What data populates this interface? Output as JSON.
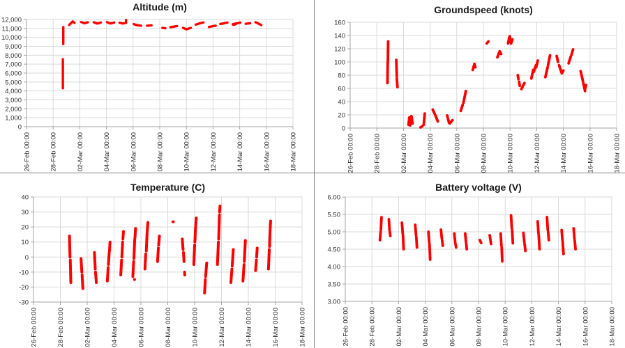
{
  "colors": {
    "series": "#ff0000",
    "gridline": "#d9d9d9",
    "axis": "#a3a3a3",
    "tick_label": "#303030",
    "title": "#1a1a1a",
    "divider": "#7f7f7f",
    "background": "#ffffff"
  },
  "chart_data": [
    {
      "id": "altitude",
      "type": "scatter",
      "title": "Altitude (m)",
      "xlabel": "",
      "ylabel": "",
      "legend": "none",
      "gridlines": "both",
      "ylim": [
        0,
        12000
      ],
      "y_tick_labels": [
        "0",
        "1,000",
        "2,000",
        "3,000",
        "4,000",
        "5,000",
        "6,000",
        "7,000",
        "8,000",
        "9,000",
        "10,000",
        "11,000",
        "12,000"
      ],
      "x_range_days": [
        0,
        20
      ],
      "x_tick_labels": [
        "26-Feb 00:00",
        "28-Feb 00:00",
        "02-Mar 00:00",
        "04-Mar 00:00",
        "06-Mar 00:00",
        "08-Mar 00:00",
        "10-Mar 00:00",
        "12-Mar 00:00",
        "14-Mar 00:00",
        "16-Mar 00:00",
        "18-Mar 00:00"
      ],
      "series": [
        {
          "segments": [
            [
              2.73,
              4300,
              2.73,
              7550
            ],
            [
              2.76,
              9250,
              2.76,
              11150
            ],
            [
              3.2,
              11380,
              3.45,
              11760
            ],
            [
              3.47,
              11780,
              3.6,
              11620
            ],
            [
              4.1,
              11720,
              4.33,
              11580
            ],
            [
              4.36,
              11580,
              4.6,
              11690
            ],
            [
              5.05,
              11690,
              5.3,
              11550
            ],
            [
              5.33,
              11550,
              5.58,
              11660
            ],
            [
              6.05,
              11700,
              6.3,
              11560
            ],
            [
              6.33,
              11560,
              6.58,
              11660
            ],
            [
              6.98,
              11640,
              7.22,
              11550
            ],
            [
              7.25,
              11560,
              7.44,
              11610
            ],
            [
              7.47,
              11620,
              7.47,
              11950
            ],
            [
              8.05,
              11480,
              8.3,
              11360
            ],
            [
              8.38,
              11340,
              8.6,
              11300
            ],
            [
              9.05,
              11300,
              9.38,
              11340
            ],
            [
              10.2,
              11060,
              10.42,
              11020
            ],
            [
              10.8,
              11140,
              11.05,
              11200
            ],
            [
              11.1,
              11220,
              11.3,
              11260
            ],
            [
              11.75,
              11060,
              11.95,
              10930
            ],
            [
              12.0,
              10900,
              12.33,
              11060
            ],
            [
              12.7,
              11420,
              12.92,
              11530
            ],
            [
              12.98,
              11560,
              13.28,
              11670
            ],
            [
              13.7,
              11170,
              13.95,
              11240
            ],
            [
              14.0,
              11260,
              14.2,
              11300
            ],
            [
              14.55,
              11500,
              14.78,
              11560
            ],
            [
              14.85,
              11600,
              15.08,
              11650
            ],
            [
              15.48,
              11470,
              15.72,
              11560
            ],
            [
              15.75,
              11560,
              16.05,
              11650
            ],
            [
              15.52,
              11400,
              15.68,
              11460
            ],
            [
              16.45,
              11520,
              16.78,
              11590
            ],
            [
              17.18,
              11690,
              17.33,
              11600
            ],
            [
              17.38,
              11560,
              17.62,
              11380
            ]
          ]
        }
      ]
    },
    {
      "id": "groundspeed",
      "type": "scatter",
      "title": "Groundspeed (knots)",
      "xlabel": "",
      "ylabel": "",
      "legend": "none",
      "gridlines": "both",
      "ylim": [
        0,
        160
      ],
      "y_tick_labels": [
        "0",
        "20",
        "40",
        "60",
        "80",
        "100",
        "120",
        "140",
        "160"
      ],
      "x_range_days": [
        0,
        20
      ],
      "x_tick_labels": [
        "26-Feb 00:00",
        "28-Feb 00:00",
        "02-Mar 00:00",
        "04-Mar 00:00",
        "06-Mar 00:00",
        "08-Mar 00:00",
        "10-Mar 00:00",
        "12-Mar 00:00",
        "14-Mar 00:00",
        "16-Mar 00:00",
        "18-Mar 00:00"
      ],
      "series": [
        {
          "segments": [
            [
              2.8,
              68,
              2.82,
              100
            ],
            [
              2.83,
              100,
              2.85,
              131
            ],
            [
              3.46,
              103,
              3.5,
              78
            ],
            [
              3.5,
              75,
              3.55,
              62
            ],
            [
              4.38,
              5,
              4.44,
              16
            ],
            [
              4.5,
              4,
              4.55,
              12
            ],
            [
              4.6,
              18,
              4.68,
              7
            ],
            [
              5.28,
              1,
              5.42,
              3
            ],
            [
              5.52,
              5,
              5.6,
              22
            ],
            [
              6.2,
              28,
              6.33,
              22
            ],
            [
              6.38,
              20,
              6.58,
              10
            ],
            [
              7.28,
              19,
              7.42,
              8
            ],
            [
              7.48,
              7,
              7.68,
              12
            ],
            [
              8.3,
              26,
              8.44,
              35
            ],
            [
              8.5,
              38,
              8.68,
              56
            ],
            [
              9.2,
              88,
              9.3,
              95
            ],
            [
              9.33,
              97,
              9.4,
              92
            ],
            [
              10.25,
              128,
              10.38,
              131
            ],
            [
              11.05,
              107,
              11.18,
              114
            ],
            [
              11.22,
              116,
              11.33,
              112
            ],
            [
              11.85,
              128,
              11.94,
              137
            ],
            [
              11.98,
              139,
              12.04,
              130
            ],
            [
              12.08,
              128,
              12.18,
              134
            ],
            [
              12.58,
              80,
              12.63,
              74
            ],
            [
              12.68,
              70,
              12.73,
              64
            ],
            [
              12.85,
              59,
              13.08,
              68
            ],
            [
              13.6,
              75,
              13.74,
              88
            ],
            [
              13.78,
              85,
              13.94,
              95
            ],
            [
              13.96,
              92,
              14.08,
              102
            ],
            [
              14.65,
              77,
              14.82,
              92
            ],
            [
              14.85,
              95,
              15.0,
              110
            ],
            [
              15.5,
              109,
              15.6,
              100
            ],
            [
              15.68,
              95,
              15.88,
              83
            ],
            [
              15.9,
              83,
              16.0,
              87
            ],
            [
              16.4,
              98,
              16.55,
              108
            ],
            [
              16.6,
              110,
              16.73,
              119
            ],
            [
              17.3,
              86,
              17.48,
              70
            ],
            [
              17.5,
              68,
              17.63,
              56
            ],
            [
              17.65,
              60,
              17.7,
              65
            ]
          ]
        }
      ]
    },
    {
      "id": "temperature",
      "type": "scatter",
      "title": "Temperature (C)",
      "xlabel": "",
      "ylabel": "",
      "legend": "none",
      "gridlines": "both",
      "ylim": [
        -30,
        40
      ],
      "y_tick_labels": [
        "-30",
        "-20",
        "-10",
        "0",
        "10",
        "20",
        "30",
        "40"
      ],
      "x_range_days": [
        0,
        20
      ],
      "x_tick_labels": [
        "26-Feb 00:00",
        "28-Feb 00:00",
        "02-Mar 00:00",
        "04-Mar 00:00",
        "06-Mar 00:00",
        "08-Mar 00:00",
        "10-Mar 00:00",
        "12-Mar 00:00",
        "14-Mar 00:00",
        "16-Mar 00:00",
        "18-Mar 00:00"
      ],
      "series": [
        {
          "segments": [
            [
              2.68,
              14,
              2.72,
              0
            ],
            [
              2.74,
              -2,
              2.78,
              -17
            ],
            [
              3.54,
              -1,
              3.6,
              -10
            ],
            [
              3.62,
              -12,
              3.68,
              -21
            ],
            [
              4.54,
              3,
              4.6,
              -8
            ],
            [
              4.62,
              -10,
              4.68,
              -17
            ],
            [
              5.5,
              -16,
              5.56,
              -7
            ],
            [
              5.58,
              -5,
              5.64,
              3
            ],
            [
              5.66,
              4,
              5.7,
              10
            ],
            [
              6.5,
              -12,
              6.56,
              -2
            ],
            [
              6.58,
              0,
              6.64,
              10
            ],
            [
              6.66,
              12,
              6.7,
              17
            ],
            [
              7.4,
              -13,
              7.46,
              -3
            ],
            [
              7.48,
              -1,
              7.54,
              12
            ],
            [
              7.56,
              13,
              7.6,
              19
            ],
            [
              7.52,
              -15,
              7.53,
              -15
            ],
            [
              8.3,
              -8,
              8.36,
              2
            ],
            [
              8.4,
              4,
              8.46,
              16
            ],
            [
              8.47,
              17,
              8.52,
              23
            ],
            [
              9.24,
              -3,
              9.3,
              6
            ],
            [
              9.32,
              8,
              9.38,
              14
            ],
            [
              10.38,
              23.5,
              10.42,
              23.5
            ],
            [
              11.08,
              12,
              11.14,
              5
            ],
            [
              11.17,
              3,
              11.21,
              -3
            ],
            [
              11.25,
              -10,
              11.27,
              -12
            ],
            [
              11.94,
              -5,
              12.0,
              8
            ],
            [
              12.02,
              10,
              12.07,
              20
            ],
            [
              12.08,
              21,
              12.12,
              26
            ],
            [
              12.74,
              -24,
              12.8,
              -15
            ],
            [
              12.82,
              -13,
              12.9,
              -4
            ],
            [
              13.7,
              -5,
              13.77,
              10
            ],
            [
              13.79,
              12,
              13.85,
              28
            ],
            [
              13.86,
              30,
              13.89,
              34
            ],
            [
              14.7,
              -17,
              14.78,
              -8
            ],
            [
              14.8,
              -6,
              14.88,
              5
            ],
            [
              15.6,
              -16,
              15.68,
              -5
            ],
            [
              15.7,
              -3,
              15.78,
              11
            ],
            [
              16.54,
              -9,
              16.6,
              -2
            ],
            [
              16.62,
              0,
              16.66,
              6
            ],
            [
              17.5,
              -8,
              17.56,
              5
            ],
            [
              17.58,
              7,
              17.62,
              18
            ],
            [
              17.63,
              19,
              17.66,
              24
            ]
          ]
        }
      ]
    },
    {
      "id": "battery-voltage",
      "type": "scatter",
      "title": "Battery voltage (V)",
      "xlabel": "",
      "ylabel": "",
      "legend": "none",
      "gridlines": "both",
      "ylim": [
        3,
        6
      ],
      "y_tick_labels": [
        "3.00",
        "3.50",
        "4.00",
        "4.50",
        "5.00",
        "5.50",
        "6.00"
      ],
      "x_range_days": [
        0,
        20
      ],
      "x_tick_labels": [
        "26-Feb 00:00",
        "28-Feb 00:00",
        "02-Mar 00:00",
        "04-Mar 00:00",
        "06-Mar 00:00",
        "08-Mar 00:00",
        "10-Mar 00:00",
        "12-Mar 00:00",
        "14-Mar 00:00",
        "16-Mar 00:00",
        "18-Mar 00:00"
      ],
      "series": [
        {
          "segments": [
            [
              2.6,
              4.76,
              2.65,
              5.0
            ],
            [
              2.67,
              5.05,
              2.72,
              5.42
            ],
            [
              3.27,
              5.36,
              3.32,
              5.05
            ],
            [
              3.34,
              5.0,
              3.38,
              4.88
            ],
            [
              4.25,
              5.26,
              4.31,
              4.95
            ],
            [
              4.33,
              4.9,
              4.38,
              4.5
            ],
            [
              5.25,
              5.2,
              5.31,
              4.9
            ],
            [
              5.33,
              4.85,
              5.38,
              4.55
            ],
            [
              6.24,
              5.0,
              6.3,
              4.7
            ],
            [
              6.32,
              4.65,
              6.37,
              4.2
            ],
            [
              7.18,
              5.06,
              7.25,
              4.8
            ],
            [
              7.27,
              4.75,
              7.32,
              4.6
            ],
            [
              8.18,
              4.95,
              8.25,
              4.7
            ],
            [
              8.27,
              4.65,
              8.32,
              4.55
            ],
            [
              9.0,
              4.95,
              9.06,
              4.7
            ],
            [
              9.08,
              4.65,
              9.12,
              4.5
            ],
            [
              10.1,
              4.76,
              10.2,
              4.68
            ],
            [
              10.84,
              4.9,
              10.94,
              4.65
            ],
            [
              11.66,
              4.95,
              11.72,
              4.6
            ],
            [
              11.74,
              4.55,
              11.78,
              4.15
            ],
            [
              12.44,
              5.47,
              12.5,
              5.1
            ],
            [
              12.52,
              5.05,
              12.58,
              4.67
            ],
            [
              13.37,
              4.97,
              13.44,
              4.7
            ],
            [
              13.46,
              4.65,
              13.52,
              4.45
            ],
            [
              14.44,
              5.3,
              14.5,
              4.95
            ],
            [
              14.52,
              4.9,
              14.58,
              4.5
            ],
            [
              15.14,
              5.42,
              15.2,
              5.05
            ],
            [
              15.22,
              5.0,
              15.28,
              4.76
            ],
            [
              16.24,
              5.05,
              16.3,
              4.75
            ],
            [
              16.32,
              4.7,
              16.38,
              4.36
            ],
            [
              17.14,
              5.1,
              17.2,
              4.8
            ],
            [
              17.22,
              4.75,
              17.28,
              4.5
            ]
          ]
        }
      ]
    }
  ]
}
